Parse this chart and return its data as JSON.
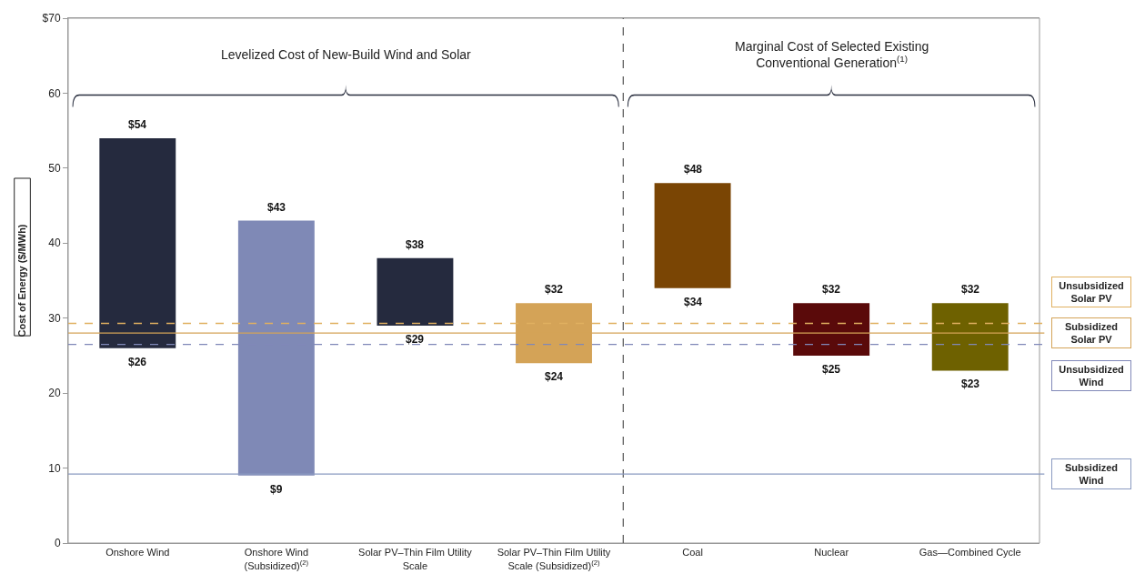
{
  "chart_data": {
    "type": "bar",
    "categories": [
      "Onshore Wind",
      "Onshore Wind\n(Subsidized)$^{(2)}$",
      "Solar PV–Thin Film Utility\nScale",
      "Solar PV–Thin Film Utility\nScale (Subsidized)$^{(2)}$",
      "Coal",
      "Nuclear",
      "Gas—Combined Cycle"
    ],
    "base": [
      26,
      9,
      29,
      24,
      34,
      25,
      23
    ],
    "values": [
      28,
      34,
      9,
      8,
      14,
      7,
      9
    ],
    "colors": [
      "#252a3e",
      "#7f89b6",
      "#252a3e",
      "#d4a357",
      "#7a4504",
      "#5a0a0a",
      "#6e6100"
    ],
    "ylabel": "Cost of Energy ($/MWh)",
    "ylim": [
      0,
      70
    ],
    "yticks": [
      0,
      10,
      20,
      30,
      40,
      50,
      60,
      {
        "value": 70,
        "label": "$70"
      }
    ],
    "legend": false,
    "annotations": [
      {
        "text": "$54",
        "x": "Onshore Wind",
        "y": 54
      },
      {
        "text": "$26",
        "x": "Onshore Wind",
        "y": 26
      },
      {
        "text": "$43",
        "x": "Onshore Wind\n(Subsidized)$^{(2)}$",
        "y": 43
      },
      {
        "text": "$9",
        "x": "Onshore Wind\n(Subsidized)$^{(2)}$",
        "y": 9
      },
      {
        "text": "$38",
        "x": "Solar PV–Thin Film Utility\nScale",
        "y": 38
      },
      {
        "text": "$29",
        "x": "Solar PV–Thin Film Utility\nScale",
        "y": 29
      },
      {
        "text": "$32",
        "x": "Solar PV–Thin Film Utility\nScale (Subsidized)$^{(2)}$",
        "y": 32
      },
      {
        "text": "$24",
        "x": "Solar PV–Thin Film Utility\nScale (Subsidized)$^{(2)}$",
        "y": 24
      },
      {
        "text": "$48",
        "x": "Coal",
        "y": 48
      },
      {
        "text": "$34",
        "x": "Coal",
        "y": 34
      },
      {
        "text": "$32",
        "x": "Nuclear",
        "y": 32
      },
      {
        "text": "$25",
        "x": "Nuclear",
        "y": 25
      },
      {
        "text": "$32",
        "x": "Gas—Combined Cycle",
        "y": 32
      },
      {
        "text": "$23",
        "x": "Gas—Combined Cycle",
        "y": 23
      },
      "Levelized Cost of New-Build Wind and Solar",
      "Marginal Cost of Selected Existing\nConventional Generation$^{(1)}$"
    ],
    "ref_lines": [
      {
        "axis": "y",
        "value": 29.3,
        "label": "Unsubsidized\nSolar PV",
        "color": "#e0b060",
        "line_style": "dashed"
      },
      {
        "axis": "y",
        "value": 28,
        "label": "Subsidized\nSolar PV",
        "color": "#d4a357",
        "line_style": "solid"
      },
      {
        "axis": "y",
        "value": 26.5,
        "label": "Unsubsidized\nWind",
        "color": "#8088b8",
        "line_style": "dashed"
      },
      {
        "axis": "y",
        "value": 9.2,
        "label": "Subsidized\nWind",
        "color": "#8a9ac0",
        "line_style": "solid"
      }
    ]
  }
}
